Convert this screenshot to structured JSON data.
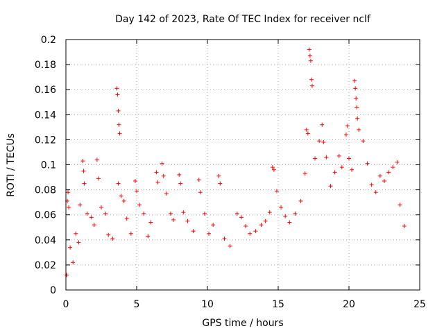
{
  "chart_data": {
    "type": "scatter",
    "title": "Day 142 of 2023, Rate Of TEC Index for receiver nclf",
    "xlabel": "GPS time / hours",
    "ylabel": "ROTI / TECUs",
    "xlim": [
      0,
      25
    ],
    "ylim": [
      0,
      0.2
    ],
    "xticks": [
      0,
      5,
      10,
      15,
      20,
      25
    ],
    "yticks": [
      0,
      0.02,
      0.04,
      0.06,
      0.08,
      0.1,
      0.12,
      0.14,
      0.16,
      0.18,
      0.2
    ],
    "xtick_labels": [
      "0",
      "5",
      "10",
      "15",
      "20",
      "25"
    ],
    "ytick_labels": [
      "0",
      "0.02",
      "0.04",
      "0.06",
      "0.08",
      "0.1",
      "0.12",
      "0.14",
      "0.16",
      "0.18",
      "0.2"
    ],
    "grid": true,
    "marker": "+",
    "color": "#ff0000",
    "series": [
      {
        "name": "ROTI",
        "points": [
          [
            0.05,
            0.012
          ],
          [
            0.1,
            0.071
          ],
          [
            0.15,
            0.078
          ],
          [
            0.2,
            0.066
          ],
          [
            0.3,
            0.034
          ],
          [
            0.5,
            0.022
          ],
          [
            0.7,
            0.045
          ],
          [
            0.9,
            0.038
          ],
          [
            1.0,
            0.068
          ],
          [
            1.2,
            0.103
          ],
          [
            1.25,
            0.095
          ],
          [
            1.3,
            0.085
          ],
          [
            1.5,
            0.061
          ],
          [
            1.8,
            0.058
          ],
          [
            2.0,
            0.052
          ],
          [
            2.2,
            0.104
          ],
          [
            2.3,
            0.089
          ],
          [
            2.5,
            0.066
          ],
          [
            2.8,
            0.061
          ],
          [
            3.0,
            0.044
          ],
          [
            3.3,
            0.041
          ],
          [
            3.6,
            0.161
          ],
          [
            3.65,
            0.156
          ],
          [
            3.7,
            0.143
          ],
          [
            3.75,
            0.132
          ],
          [
            3.8,
            0.125
          ],
          [
            3.7,
            0.085
          ],
          [
            3.9,
            0.075
          ],
          [
            4.1,
            0.071
          ],
          [
            4.3,
            0.057
          ],
          [
            4.6,
            0.045
          ],
          [
            4.9,
            0.087
          ],
          [
            5.0,
            0.079
          ],
          [
            5.2,
            0.068
          ],
          [
            5.5,
            0.061
          ],
          [
            5.8,
            0.043
          ],
          [
            6.0,
            0.054
          ],
          [
            6.4,
            0.094
          ],
          [
            6.5,
            0.086
          ],
          [
            6.8,
            0.101
          ],
          [
            6.9,
            0.091
          ],
          [
            7.1,
            0.077
          ],
          [
            7.4,
            0.061
          ],
          [
            7.6,
            0.056
          ],
          [
            8.0,
            0.092
          ],
          [
            8.1,
            0.085
          ],
          [
            8.3,
            0.062
          ],
          [
            8.6,
            0.055
          ],
          [
            9.0,
            0.047
          ],
          [
            9.4,
            0.088
          ],
          [
            9.5,
            0.078
          ],
          [
            9.8,
            0.061
          ],
          [
            10.1,
            0.045
          ],
          [
            10.4,
            0.052
          ],
          [
            10.8,
            0.091
          ],
          [
            10.9,
            0.085
          ],
          [
            11.2,
            0.041
          ],
          [
            11.6,
            0.035
          ],
          [
            12.1,
            0.061
          ],
          [
            12.4,
            0.058
          ],
          [
            12.7,
            0.051
          ],
          [
            13.0,
            0.045
          ],
          [
            13.4,
            0.047
          ],
          [
            13.8,
            0.052
          ],
          [
            14.1,
            0.055
          ],
          [
            14.4,
            0.062
          ],
          [
            14.6,
            0.098
          ],
          [
            14.7,
            0.096
          ],
          [
            14.9,
            0.079
          ],
          [
            15.2,
            0.066
          ],
          [
            15.5,
            0.059
          ],
          [
            15.8,
            0.054
          ],
          [
            16.2,
            0.061
          ],
          [
            16.6,
            0.071
          ],
          [
            16.9,
            0.093
          ],
          [
            17.0,
            0.128
          ],
          [
            17.1,
            0.125
          ],
          [
            17.2,
            0.192
          ],
          [
            17.25,
            0.187
          ],
          [
            17.3,
            0.183
          ],
          [
            17.35,
            0.168
          ],
          [
            17.4,
            0.163
          ],
          [
            17.6,
            0.105
          ],
          [
            17.9,
            0.119
          ],
          [
            18.1,
            0.132
          ],
          [
            18.2,
            0.118
          ],
          [
            18.4,
            0.106
          ],
          [
            18.7,
            0.083
          ],
          [
            19.0,
            0.094
          ],
          [
            19.3,
            0.107
          ],
          [
            19.5,
            0.098
          ],
          [
            19.8,
            0.124
          ],
          [
            19.9,
            0.131
          ],
          [
            20.0,
            0.105
          ],
          [
            20.2,
            0.096
          ],
          [
            20.4,
            0.167
          ],
          [
            20.45,
            0.161
          ],
          [
            20.5,
            0.153
          ],
          [
            20.55,
            0.146
          ],
          [
            20.6,
            0.137
          ],
          [
            20.7,
            0.128
          ],
          [
            21.0,
            0.119
          ],
          [
            21.3,
            0.101
          ],
          [
            21.6,
            0.084
          ],
          [
            21.9,
            0.078
          ],
          [
            22.2,
            0.091
          ],
          [
            22.5,
            0.087
          ],
          [
            22.8,
            0.094
          ],
          [
            23.1,
            0.098
          ],
          [
            23.4,
            0.102
          ],
          [
            23.6,
            0.068
          ],
          [
            23.9,
            0.051
          ]
        ]
      }
    ]
  }
}
